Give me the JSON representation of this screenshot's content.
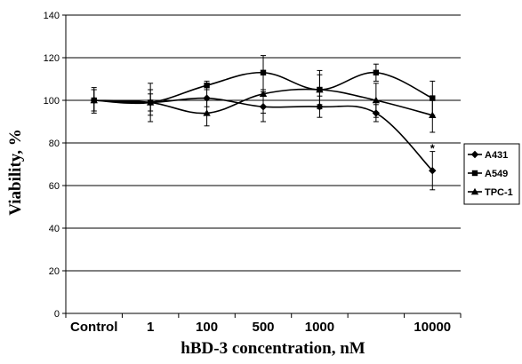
{
  "chart_data": {
    "type": "line",
    "xlabel": "hBD-3 concentration, nM",
    "ylabel": "Viability, %",
    "categories": [
      "Control",
      "1",
      "100",
      "500",
      "1000",
      "",
      "10000"
    ],
    "ylim": [
      0,
      140
    ],
    "yticks": [
      0,
      20,
      40,
      60,
      80,
      100,
      120,
      140
    ],
    "grid": true,
    "legend_position": "right",
    "series": [
      {
        "name": "A431",
        "marker": "diamond",
        "values": [
          100,
          99,
          101,
          97,
          97,
          94,
          67
        ],
        "errors": [
          6,
          9,
          4,
          7,
          5,
          4,
          9
        ]
      },
      {
        "name": "A549",
        "marker": "square",
        "values": [
          100,
          99,
          107,
          113,
          105,
          113,
          101
        ],
        "errors": [
          5,
          6,
          2,
          8,
          9,
          4,
          8
        ]
      },
      {
        "name": "TPC-1",
        "marker": "triangle",
        "values": [
          100,
          99,
          94,
          103,
          105,
          100,
          93
        ],
        "errors": [
          5,
          4,
          6,
          9,
          7,
          8,
          8
        ]
      }
    ],
    "annotations": [
      {
        "text": "*",
        "category_index": 6,
        "y": 79
      }
    ]
  }
}
